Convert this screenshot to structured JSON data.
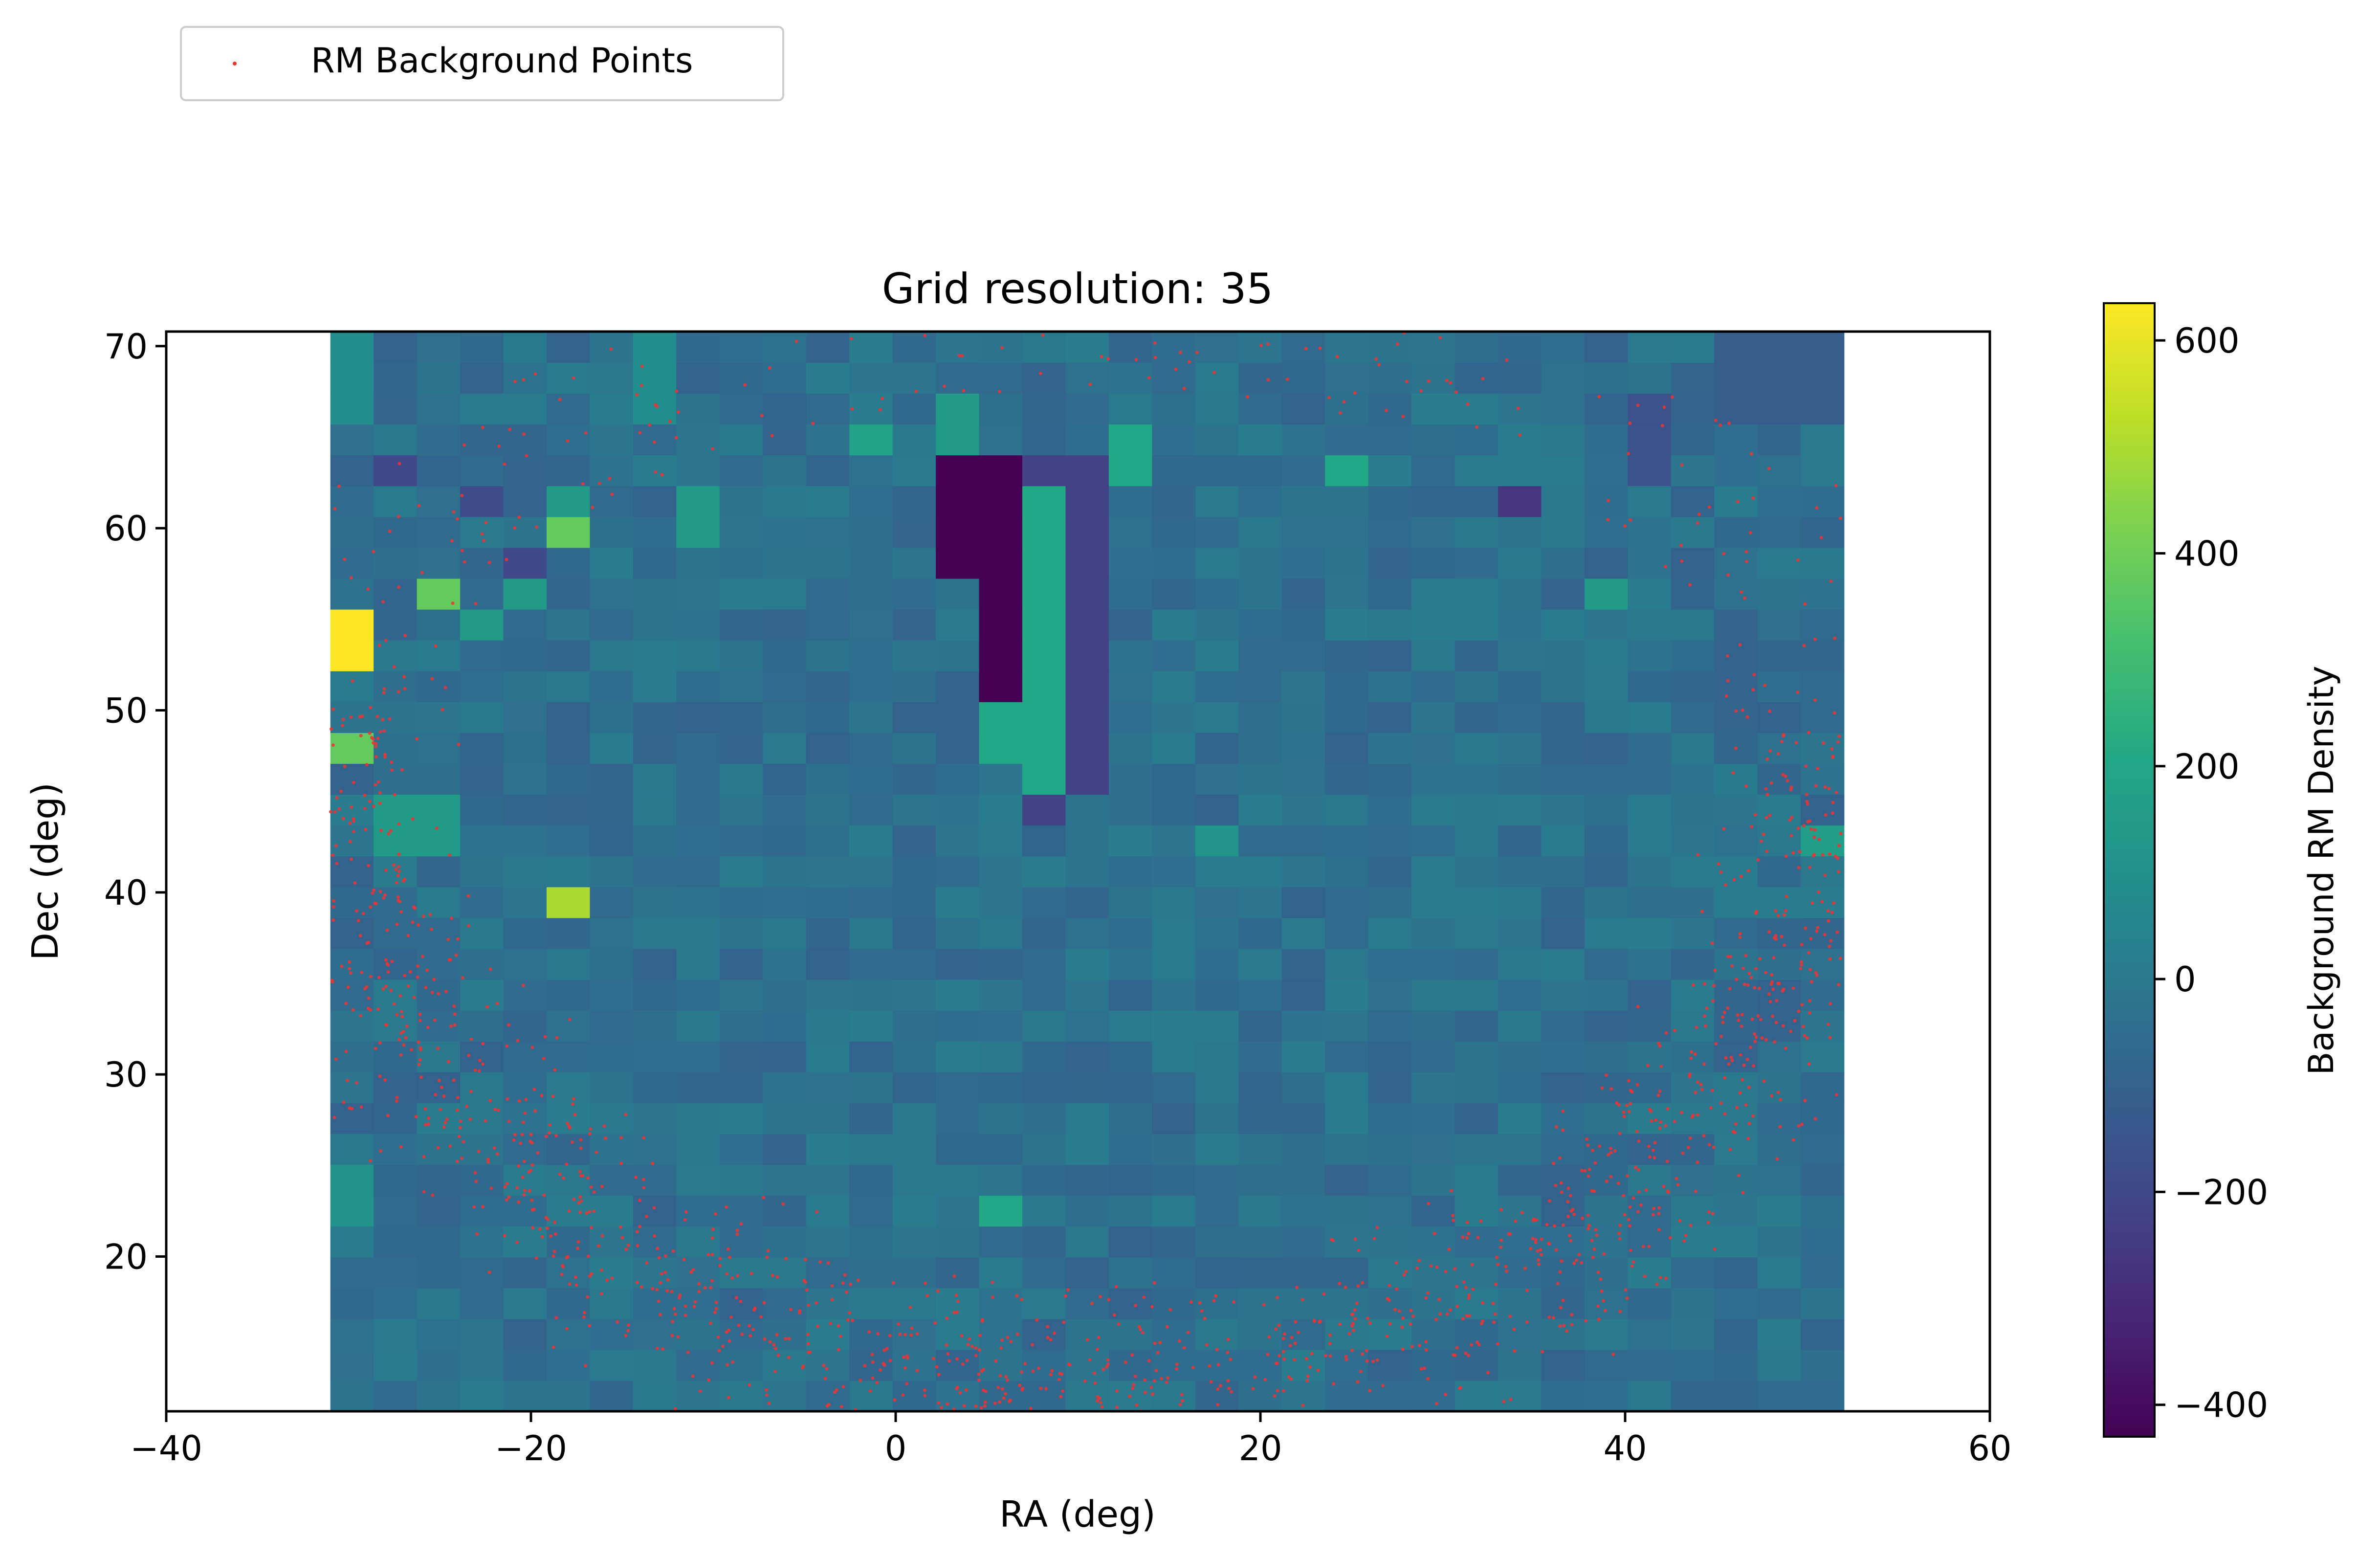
{
  "chart_data": {
    "type": "heatmap",
    "title": "Grid resolution: 35",
    "xlabel": "RA (deg)",
    "ylabel": "Dec (deg)",
    "xlim": [
      -40,
      60
    ],
    "ylim": [
      11.5,
      70.8
    ],
    "xticks": [
      -40,
      -20,
      0,
      20,
      40,
      60
    ],
    "xtick_labels": [
      "−40",
      "−20",
      "0",
      "20",
      "40",
      "60"
    ],
    "yticks": [
      20,
      30,
      40,
      50,
      60,
      70
    ],
    "ytick_labels": [
      "20",
      "30",
      "40",
      "50",
      "60",
      "70"
    ],
    "grid": false,
    "colormap": "viridis",
    "colorbar": {
      "label": "Background RM Density",
      "range": [
        -430,
        635
      ],
      "ticks": [
        -400,
        -200,
        0,
        200,
        400,
        600
      ],
      "tick_labels": [
        "−400",
        "−200",
        "0",
        "200",
        "400",
        "600"
      ]
    },
    "heatmap": {
      "ra_range": [
        -31,
        52
      ],
      "dec_range": [
        11.5,
        70.8
      ],
      "cols": 35,
      "rows": 35,
      "base_value": -40,
      "patches": [
        {
          "ra": [
            -31,
            -28.6
          ],
          "dec": [
            51.8,
            55.2
          ],
          "value": 635
        },
        {
          "ra": [
            -31,
            -28.6
          ],
          "dec": [
            46.8,
            48.6
          ],
          "value": 380
        },
        {
          "ra": [
            -26.3,
            -23.9
          ],
          "dec": [
            55.8,
            57.4
          ],
          "value": 380
        },
        {
          "ra": [
            -19,
            -16.7
          ],
          "dec": [
            58.6,
            60.4
          ],
          "value": 380
        },
        {
          "ra": [
            -19,
            -16.7
          ],
          "dec": [
            38.4,
            40.2
          ],
          "value": 500
        },
        {
          "ra": [
            -28.6,
            -23.9
          ],
          "dec": [
            42.0,
            45.2
          ],
          "value": 150
        },
        {
          "ra": [
            -23.9,
            -21.5
          ],
          "dec": [
            53.6,
            55.2
          ],
          "value": 150
        },
        {
          "ra": [
            -21.5,
            -19
          ],
          "dec": [
            55.8,
            57.4
          ],
          "value": 150
        },
        {
          "ra": [
            -19,
            -16.7
          ],
          "dec": [
            60.4,
            61.6
          ],
          "value": 150
        },
        {
          "ra": [
            -12,
            -9.6
          ],
          "dec": [
            59.6,
            61.6
          ],
          "value": 150
        },
        {
          "ra": [
            -2.5,
            0
          ],
          "dec": [
            63.2,
            65.0
          ],
          "value": 180
        },
        {
          "ra": [
            2.5,
            4.8
          ],
          "dec": [
            64.8,
            66.6
          ],
          "value": 150
        },
        {
          "ra": [
            2.5,
            7.2
          ],
          "dec": [
            57.4,
            63.2
          ],
          "value": -430
        },
        {
          "ra": [
            4.8,
            7.2
          ],
          "dec": [
            50.5,
            57.4
          ],
          "value": -430
        },
        {
          "ra": [
            7.2,
            9.5
          ],
          "dec": [
            46.2,
            61.6
          ],
          "value": 210
        },
        {
          "ra": [
            4.8,
            7.2
          ],
          "dec": [
            47.7,
            50.5
          ],
          "value": 210
        },
        {
          "ra": [
            9.5,
            11.9
          ],
          "dec": [
            45.6,
            63.2
          ],
          "value": -220
        },
        {
          "ra": [
            7.2,
            9.5
          ],
          "dec": [
            43.2,
            46.2
          ],
          "value": -220
        },
        {
          "ra": [
            7.2,
            9.5
          ],
          "dec": [
            61.6,
            63.2
          ],
          "value": -220
        },
        {
          "ra": [
            11.9,
            14.3
          ],
          "dec": [
            61.6,
            65.2
          ],
          "value": 210
        },
        {
          "ra": [
            23.8,
            26.2
          ],
          "dec": [
            61.6,
            63.2
          ],
          "value": 210
        },
        {
          "ra": [
            33.3,
            35.7
          ],
          "dec": [
            60.8,
            62.4
          ],
          "value": -260
        },
        {
          "ra": [
            38.1,
            40.5
          ],
          "dec": [
            56.0,
            57.6
          ],
          "value": 150
        },
        {
          "ra": [
            4.8,
            7.2
          ],
          "dec": [
            21.6,
            23.4
          ],
          "value": 210
        },
        {
          "ra": [
            16.7,
            19.0
          ],
          "dec": [
            42.2,
            43.8
          ],
          "value": 120
        },
        {
          "ra": [
            -23.9,
            -21.5
          ],
          "dec": [
            60.8,
            62.4
          ],
          "value": -180
        },
        {
          "ra": [
            -21.5,
            -19
          ],
          "dec": [
            57.4,
            59.2
          ],
          "value": -200
        },
        {
          "ra": [
            -28.6,
            -26.3
          ],
          "dec": [
            62.4,
            64.0
          ],
          "value": -200
        },
        {
          "ra": [
            40.5,
            42.9
          ],
          "dec": [
            63.0,
            67.4
          ],
          "value": -160
        },
        {
          "ra": [
            45.2,
            52.0
          ],
          "dec": [
            66.0,
            70.8
          ],
          "value": -120
        },
        {
          "ra": [
            -14.3,
            -12.0
          ],
          "dec": [
            66.0,
            70.8
          ],
          "value": 80
        },
        {
          "ra": [
            -31,
            -28.6
          ],
          "dec": [
            66.0,
            70.8
          ],
          "value": 80
        },
        {
          "ra": [
            50.0,
            52.0
          ],
          "dec": [
            42.2,
            43.8
          ],
          "value": 160
        },
        {
          "ra": [
            -31,
            -28.6
          ],
          "dec": [
            21.6,
            25.6
          ],
          "value": 110
        }
      ]
    },
    "series": [
      {
        "name": "RM Background Points",
        "color": "#ee3333",
        "ring": {
          "center": [
            10.5,
            50.0
          ],
          "radius_deg": 37.5,
          "width_deg": 7.5,
          "ra_min": -31,
          "ra_max": 52,
          "dec_max": 70.8
        },
        "count": 1400
      }
    ],
    "legend": {
      "placement": "top-left, above plot",
      "entries": [
        "RM Background Points"
      ]
    }
  }
}
